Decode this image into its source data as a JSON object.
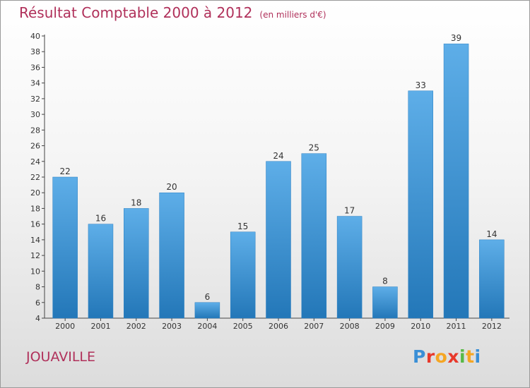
{
  "header": {
    "title": "Résultat Comptable 2000 à 2012",
    "subtitle": "(en milliers d'€)"
  },
  "footer": {
    "commune": "JOUAVILLE",
    "logo_letters": [
      "P",
      "r",
      "o",
      "x",
      "i",
      "t",
      "i"
    ],
    "logo_colors": [
      "#3a8fd6",
      "#e8392b",
      "#f5a623",
      "#e8392b",
      "#58b947",
      "#f5a623",
      "#3a8fd6"
    ]
  },
  "colors": {
    "bar_top": "#5eaee8",
    "bar_bottom": "#2377b8",
    "title": "#b0305a"
  },
  "chart_data": {
    "type": "bar",
    "categories": [
      "2000",
      "2001",
      "2002",
      "2003",
      "2004",
      "2005",
      "2006",
      "2007",
      "2008",
      "2009",
      "2010",
      "2011",
      "2012"
    ],
    "values": [
      22,
      16,
      18,
      20,
      6,
      15,
      24,
      25,
      17,
      8,
      33,
      39,
      14
    ],
    "ylim": [
      4,
      40
    ],
    "yticks": [
      4,
      6,
      8,
      10,
      12,
      14,
      16,
      18,
      20,
      22,
      24,
      26,
      28,
      30,
      32,
      34,
      36,
      38,
      40
    ],
    "grid": false,
    "data_labels": true
  }
}
